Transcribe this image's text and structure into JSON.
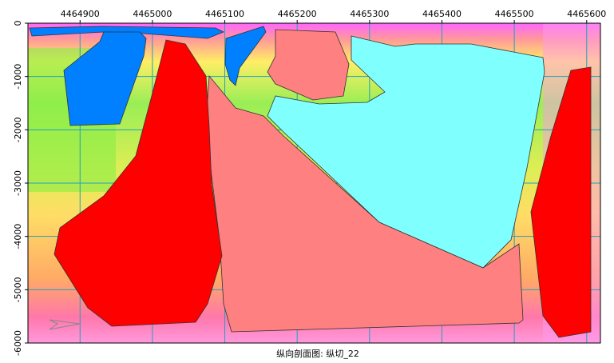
{
  "chart_data": {
    "type": "section",
    "title": "纵向剖面图: 纵切_22",
    "xlim": [
      4464828,
      4465619
    ],
    "xticks": [
      4464900,
      4465000,
      4465100,
      4465200,
      4465300,
      4465400,
      4465500,
      4465600
    ],
    "ylim": [
      -6000,
      0
    ],
    "yticks": [
      0,
      -1000,
      -2000,
      -3000,
      -4000,
      -5000,
      -6000
    ],
    "grid": true
  }
}
